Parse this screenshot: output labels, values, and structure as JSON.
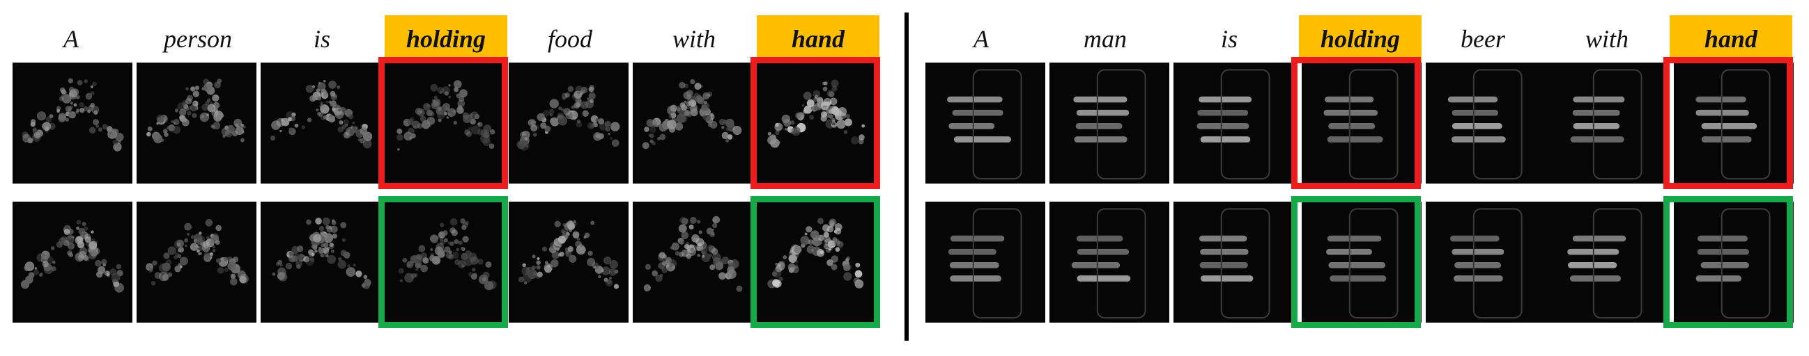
{
  "left": {
    "words": [
      "A",
      "person",
      "is",
      "holding",
      "food",
      "with",
      "hand"
    ],
    "highlighted": [
      3,
      6
    ],
    "rows": [
      "red",
      "green"
    ]
  },
  "right": {
    "words": [
      "A",
      "man",
      "is",
      "holding",
      "beer",
      "with",
      "hand"
    ],
    "highlighted": [
      3,
      6
    ],
    "rows": [
      "red",
      "green"
    ]
  },
  "colors": {
    "highlight": "#ffbf00",
    "red_box": "#ee1c1c",
    "green_box": "#17a84a"
  }
}
